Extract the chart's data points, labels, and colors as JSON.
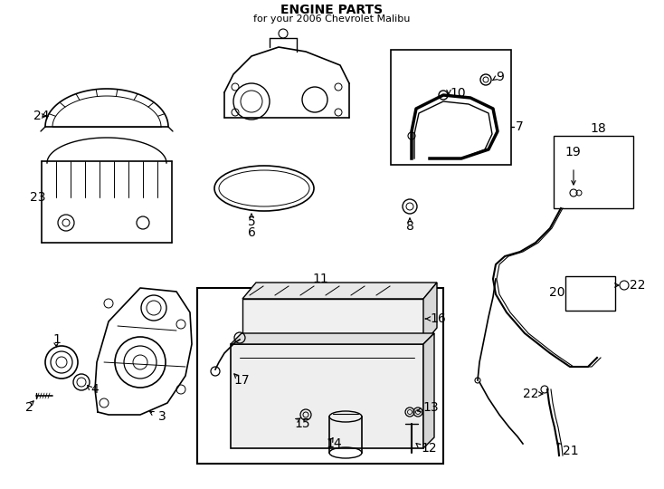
{
  "title": "ENGINE PARTS",
  "subtitle": "for your 2006 Chevrolet Malibu",
  "bg_color": "#ffffff",
  "line_color": "#000000",
  "lw_main": 1.0,
  "lw_thick": 1.4,
  "lw_thin": 0.7,
  "font_size_num": 10,
  "font_size_title": 10,
  "font_size_sub": 8
}
